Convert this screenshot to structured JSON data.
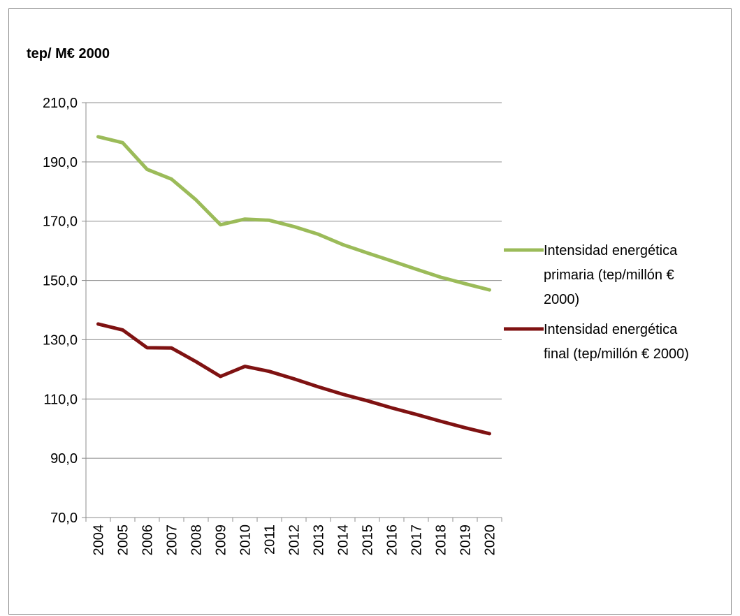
{
  "chart_data": {
    "type": "line",
    "title": "",
    "unit_label": "tep/ M€ 2000",
    "xlabel": "",
    "ylabel": "",
    "ylim": [
      70,
      210
    ],
    "y_ticks": [
      "210,0",
      "190,0",
      "170,0",
      "150,0",
      "130,0",
      "110,0",
      "90,0",
      "70,0"
    ],
    "y_tick_values": [
      210,
      190,
      170,
      150,
      130,
      110,
      90,
      70
    ],
    "categories": [
      "2004",
      "2005",
      "2006",
      "2007",
      "2008",
      "2009",
      "2010",
      "2011",
      "2012",
      "2013",
      "2014",
      "2015",
      "2016",
      "2017",
      "2018",
      "2019",
      "2020"
    ],
    "grid": true,
    "legend_position": "right",
    "series": [
      {
        "name": "Intensidad energética primaria (tep/millón € 2000)",
        "legend_lines": [
          "Intensidad energética",
          "primaria (tep/millón €",
          "2000)"
        ],
        "color": "#9BBB59",
        "values": [
          198.5,
          196.5,
          187.5,
          184.2,
          177.2,
          168.8,
          170.7,
          170.3,
          168.2,
          165.6,
          162.1,
          159.3,
          156.6,
          153.8,
          151.1,
          148.9,
          146.8
        ]
      },
      {
        "name": "Intensidad energética final (tep/millón € 2000)",
        "legend_lines": [
          "Intensidad energética",
          "final (tep/millón € 2000)"
        ],
        "color": "#7F1212",
        "values": [
          135.3,
          133.3,
          127.3,
          127.2,
          122.6,
          117.6,
          121.0,
          119.3,
          116.8,
          114.1,
          111.6,
          109.4,
          107.0,
          104.8,
          102.5,
          100.3,
          98.3
        ]
      }
    ]
  }
}
